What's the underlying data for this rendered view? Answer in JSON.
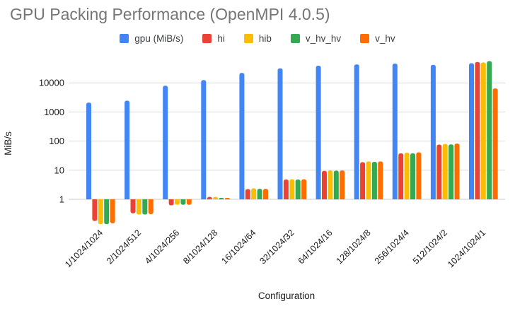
{
  "chart_data": {
    "type": "bar",
    "title": "GPU Packing Performance (OpenMPI 4.0.5)",
    "xlabel": "Configuration",
    "ylabel": "MiB/s",
    "y_scale": "log",
    "y_ticks": [
      1,
      10,
      100,
      1000,
      10000
    ],
    "ylim": [
      0.13,
      60000
    ],
    "grid": true,
    "legend_position": "top",
    "categories": [
      "1/1024/1024",
      "2/1024/512",
      "4/1024/256",
      "8/1024/128",
      "16/1024/64",
      "32/1024/32",
      "64/1024/16",
      "128/1024/8",
      "256/1024/4",
      "512/1024/2",
      "1024/1024/1"
    ],
    "series": [
      {
        "name": "gpu (MiB/s)",
        "color": "#4285F4",
        "values": [
          2100,
          2450,
          8000,
          12500,
          22000,
          31500,
          39000,
          43000,
          46000,
          41500,
          47500
        ]
      },
      {
        "name": "hi",
        "color": "#EA4335",
        "values": [
          0.18,
          0.33,
          0.62,
          1.22,
          2.25,
          4.8,
          9.5,
          19,
          38,
          76,
          52000
        ]
      },
      {
        "name": "hib",
        "color": "#FBBC04",
        "values": [
          0.14,
          0.3,
          0.65,
          1.22,
          2.4,
          4.9,
          9.8,
          20,
          40,
          80,
          50000
        ]
      },
      {
        "name": "v_hv_hv",
        "color": "#34A853",
        "values": [
          0.14,
          0.3,
          0.65,
          1.12,
          2.3,
          4.8,
          9.7,
          19.5,
          38,
          77,
          56000
        ]
      },
      {
        "name": "v_hv",
        "color": "#FF6D01",
        "values": [
          0.15,
          0.31,
          0.65,
          1.12,
          2.3,
          4.9,
          9.8,
          20,
          41,
          82,
          6400
        ]
      }
    ],
    "colors": {
      "gridline": "#dadada",
      "baseline": "#c8c8c8",
      "tick_label": "#1a1a1a",
      "axis_title": "#1a1a1a",
      "title": "#757575"
    }
  }
}
